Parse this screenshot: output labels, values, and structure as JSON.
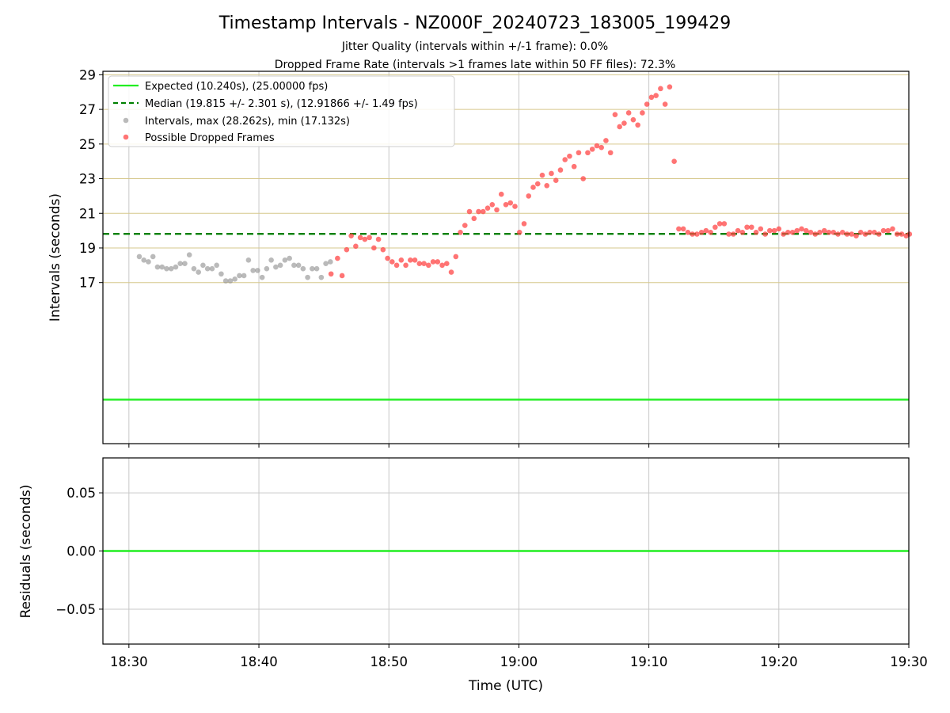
{
  "figure": {
    "title": "Timestamp Intervals - NZ000F_20240723_183005_199429",
    "subtitle_1": "Jitter Quality (intervals within +/-1 frame): 0.0%",
    "subtitle_2": "Dropped Frame Rate (intervals >1 frames late within 50 FF files): 72.3%",
    "xlabel": "Time (UTC)"
  },
  "chart_data": [
    {
      "type": "scatter",
      "panel": "intervals",
      "ylabel": "Intervals (seconds)",
      "xlim": [
        "18:28",
        "19:30"
      ],
      "ylim": [
        7.7,
        29.2
      ],
      "y_ticks": [
        "17",
        "19",
        "21",
        "23",
        "25",
        "27",
        "29"
      ],
      "x_ticks": [
        "18:30",
        "18:40",
        "18:50",
        "19:00",
        "19:10",
        "19:20",
        "19:30"
      ],
      "grid": true,
      "horizontal_gridlines_color": "#d6c88c",
      "legend_position": "upper-left",
      "legend": [
        "Expected (10.240s), (25.00000 fps)",
        "Median (19.815 +/- 2.301 s), (12.91866 +/- 1.49 fps)",
        "Intervals, max (28.262s), min (17.132s)",
        "Possible Dropped Frames"
      ],
      "lines": [
        {
          "name": "Expected",
          "y": 10.24,
          "color": "#22ee22",
          "style": "solid"
        },
        {
          "name": "Median",
          "y": 19.815,
          "color": "#008000",
          "style": "dashed"
        }
      ],
      "series": [
        {
          "name": "Intervals",
          "color": "#8c8c8c",
          "x": [
            "18:30:48",
            "18:31:09",
            "18:31:30",
            "18:31:51",
            "18:32:12",
            "18:32:33",
            "18:32:54",
            "18:33:15",
            "18:33:36",
            "18:33:57",
            "18:34:18",
            "18:34:39",
            "18:35:00",
            "18:35:21",
            "18:35:42",
            "18:36:03",
            "18:36:24",
            "18:36:45",
            "18:37:06",
            "18:37:27",
            "18:37:48",
            "18:38:09",
            "18:38:30",
            "18:38:51",
            "18:39:12",
            "18:39:33",
            "18:39:54",
            "18:40:15",
            "18:40:36",
            "18:40:57",
            "18:41:18",
            "18:41:39",
            "18:42:00",
            "18:42:21",
            "18:42:42",
            "18:43:03",
            "18:43:24",
            "18:43:45",
            "18:44:06",
            "18:44:27",
            "18:44:48",
            "18:45:09",
            "18:45:30"
          ],
          "y": [
            18.5,
            18.3,
            18.2,
            18.5,
            17.9,
            17.9,
            17.8,
            17.8,
            17.9,
            18.1,
            18.1,
            18.6,
            17.8,
            17.6,
            18.0,
            17.8,
            17.8,
            18.0,
            17.5,
            17.1,
            17.1,
            17.2,
            17.4,
            17.4,
            18.3,
            17.7,
            17.7,
            17.3,
            17.8,
            18.3,
            17.9,
            18.0,
            18.3,
            18.4,
            18.0,
            18.0,
            17.8,
            17.3,
            17.8,
            17.8,
            17.3,
            18.1,
            18.2
          ]
        },
        {
          "name": "Possible Dropped Frames",
          "color": "#ff4545",
          "x": [
            "18:45:33",
            "18:46:03",
            "18:46:24",
            "18:46:45",
            "18:47:06",
            "18:47:27",
            "18:47:48",
            "18:48:09",
            "18:48:30",
            "18:48:51",
            "18:49:12",
            "18:49:33",
            "18:49:54",
            "18:50:15",
            "18:50:36",
            "18:50:57",
            "18:51:18",
            "18:51:39",
            "18:52:00",
            "18:52:21",
            "18:52:42",
            "18:53:03",
            "18:53:24",
            "18:53:45",
            "18:54:06",
            "18:54:27",
            "18:54:48",
            "18:55:09",
            "18:55:30",
            "18:55:51",
            "18:56:12",
            "18:56:33",
            "18:56:54",
            "18:57:15",
            "18:57:36",
            "18:57:57",
            "18:58:18",
            "18:58:39",
            "18:59:00",
            "18:59:21",
            "18:59:42",
            "19:00:03",
            "19:00:24",
            "19:00:45",
            "19:01:06",
            "19:01:27",
            "19:01:48",
            "19:02:09",
            "19:02:30",
            "19:02:51",
            "19:03:12",
            "19:03:33",
            "19:03:54",
            "19:04:15",
            "19:04:36",
            "19:04:57",
            "19:05:18",
            "19:05:39",
            "19:06:00",
            "19:06:21",
            "19:06:42",
            "19:07:03",
            "19:07:24",
            "19:07:45",
            "19:08:06",
            "19:08:27",
            "19:08:48",
            "19:09:09",
            "19:09:30",
            "19:09:51",
            "19:10:12",
            "19:10:33",
            "19:10:54",
            "19:11:15",
            "19:11:36",
            "19:11:57",
            "19:12:18",
            "19:12:39",
            "19:13:00",
            "19:13:21",
            "19:13:42",
            "19:14:03",
            "19:14:24",
            "19:14:45",
            "19:15:06",
            "19:15:27",
            "19:15:48",
            "19:16:09",
            "19:16:30",
            "19:16:51",
            "19:17:12",
            "19:17:33",
            "19:17:54",
            "19:18:15",
            "19:18:36",
            "19:18:57",
            "19:19:18",
            "19:19:39",
            "19:20:00",
            "19:20:21",
            "19:20:42",
            "19:21:03",
            "19:21:24",
            "19:21:45",
            "19:22:06",
            "19:22:27",
            "19:22:48",
            "19:23:09",
            "19:23:30",
            "19:23:51",
            "19:24:12",
            "19:24:33",
            "19:24:54",
            "19:25:15",
            "19:25:36",
            "19:25:57",
            "19:26:18",
            "19:26:39",
            "19:27:00",
            "19:27:21",
            "19:27:42",
            "19:28:03",
            "19:28:24",
            "19:28:45",
            "19:29:06",
            "19:29:27",
            "19:29:48",
            "19:30:03"
          ],
          "y": [
            17.5,
            18.4,
            17.4,
            18.9,
            19.7,
            19.1,
            19.6,
            19.5,
            19.6,
            19.0,
            19.5,
            18.9,
            18.4,
            18.2,
            18.0,
            18.3,
            18.0,
            18.3,
            18.3,
            18.1,
            18.1,
            18.0,
            18.2,
            18.2,
            18.0,
            18.1,
            17.6,
            18.5,
            19.9,
            20.3,
            21.1,
            20.7,
            21.1,
            21.1,
            21.3,
            21.5,
            21.2,
            22.1,
            21.5,
            21.6,
            21.4,
            19.9,
            20.4,
            22.0,
            22.5,
            22.7,
            23.2,
            22.6,
            23.3,
            22.9,
            23.5,
            24.1,
            24.3,
            23.7,
            24.5,
            23.0,
            24.5,
            24.7,
            24.9,
            24.8,
            25.2,
            24.5,
            26.7,
            26.0,
            26.2,
            26.8,
            26.4,
            26.1,
            26.8,
            27.3,
            27.7,
            27.8,
            28.2,
            27.3,
            28.3,
            24.0,
            20.1,
            20.1,
            19.9,
            19.8,
            19.8,
            19.9,
            20.0,
            19.9,
            20.2,
            20.4,
            20.4,
            19.8,
            19.8,
            20.0,
            19.9,
            20.2,
            20.2,
            19.9,
            20.1,
            19.8,
            20.0,
            20.0,
            20.1,
            19.8,
            19.9,
            19.9,
            20.0,
            20.1,
            20.0,
            19.9,
            19.8,
            19.9,
            20.0,
            19.9,
            19.9,
            19.8,
            19.9,
            19.8,
            19.8,
            19.7,
            19.9,
            19.8,
            19.9,
            19.9,
            19.8,
            20.0,
            20.0,
            20.1,
            19.8,
            19.8,
            19.7,
            19.8
          ]
        }
      ]
    },
    {
      "type": "line",
      "panel": "residuals",
      "ylabel": "Residuals (seconds)",
      "ylim": [
        -0.08,
        0.08
      ],
      "y_ticks": [
        "0.05",
        "0.00",
        "−0.05"
      ],
      "x_ticks": [
        "18:30",
        "18:40",
        "18:50",
        "19:00",
        "19:10",
        "19:20",
        "19:30"
      ],
      "grid": true,
      "series": [
        {
          "name": "Residuals",
          "color": "#22ee22",
          "y": 0.0
        }
      ]
    }
  ]
}
